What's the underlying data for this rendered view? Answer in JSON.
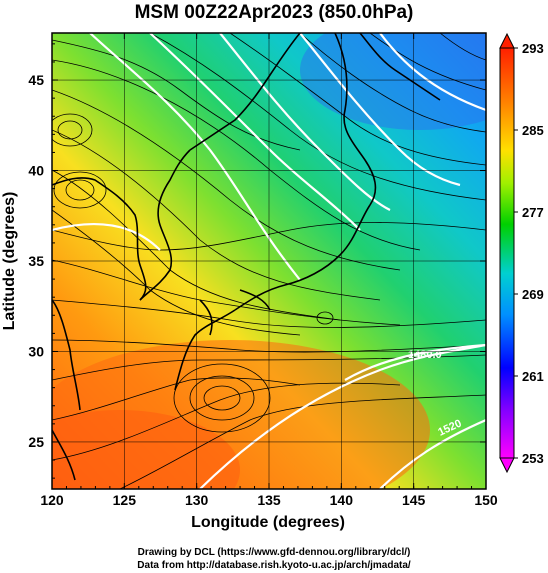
{
  "title": "MSM 00Z22Apr2023 (850.0hPa)",
  "map": {
    "x_axis_label": "Longitude (degrees)",
    "y_axis_label": "Latitude  (degrees)",
    "lon_range": [
      120,
      150
    ],
    "lat_range": [
      22.4,
      47.6
    ],
    "lon_ticks": [
      "120",
      "125",
      "130",
      "135",
      "140",
      "145",
      "150"
    ],
    "lat_ticks": [
      "25",
      "30",
      "35",
      "40",
      "45"
    ],
    "contour_labels": [
      "1480.0",
      "1520"
    ],
    "colorbar": {
      "min": 253,
      "max": 293,
      "tick_labels": [
        "293",
        "285",
        "277",
        "269",
        "261",
        "253"
      ],
      "colors": [
        "#ff00ff",
        "#0000ff",
        "#00b0ff",
        "#00d0a0",
        "#00d000",
        "#d0f000",
        "#ffd000",
        "#ff8000",
        "#ff2000"
      ]
    }
  },
  "credits": {
    "line1": "Drawing by DCL (https://www.gfd-dennou.org/library/dcl/)",
    "line2": "Data from http://database.rish.kyoto-u.ac.jp/arch/jmadata/"
  }
}
